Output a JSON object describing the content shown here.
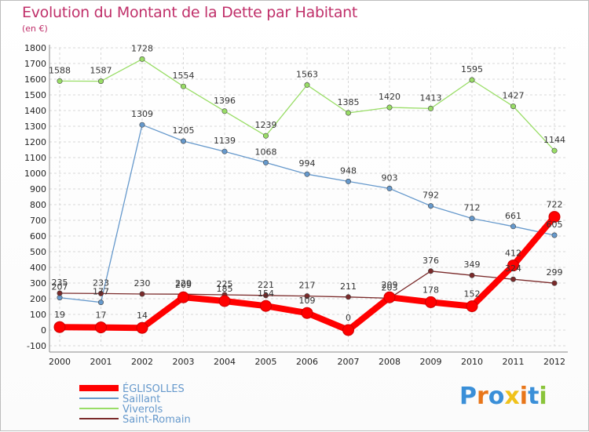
{
  "header": {
    "title": "Evolution du Montant de la Dette par Habitant",
    "unit": "(en €)"
  },
  "logo": {
    "text": "Proxiti"
  },
  "chart_data": {
    "type": "line",
    "title": "Evolution du Montant de la Dette par Habitant",
    "ylabel": "(en €)",
    "xlabel": "",
    "x": [
      "2000",
      "2001",
      "2002",
      "2003",
      "2004",
      "2005",
      "2006",
      "2007",
      "2008",
      "2009",
      "2010",
      "2011",
      "2012"
    ],
    "ylim": [
      -100,
      1800
    ],
    "yticks": [
      -100,
      0,
      100,
      200,
      300,
      400,
      500,
      600,
      700,
      800,
      900,
      1000,
      1100,
      1200,
      1300,
      1400,
      1500,
      1600,
      1700,
      1800
    ],
    "grid": true,
    "legend_position": "bottom-left",
    "series": [
      {
        "name": "ÉGLISOLLES",
        "color": "#ff0000",
        "values": [
          19,
          17,
          14,
          209,
          185,
          154,
          109,
          0,
          209,
          178,
          152,
          412,
          722
        ]
      },
      {
        "name": "Saillant",
        "color": "#6699cc",
        "values": [
          207,
          177,
          1309,
          1205,
          1139,
          1068,
          994,
          948,
          903,
          792,
          712,
          661,
          605
        ]
      },
      {
        "name": "Viverols",
        "color": "#99dd66",
        "values": [
          1588,
          1587,
          1728,
          1554,
          1396,
          1239,
          1563,
          1385,
          1420,
          1413,
          1595,
          1427,
          1144
        ]
      },
      {
        "name": "Saint-Romain",
        "color": "#7a2a2a",
        "values": [
          235,
          233,
          230,
          229,
          225,
          221,
          217,
          211,
          203,
          376,
          349,
          324,
          299
        ]
      }
    ]
  }
}
